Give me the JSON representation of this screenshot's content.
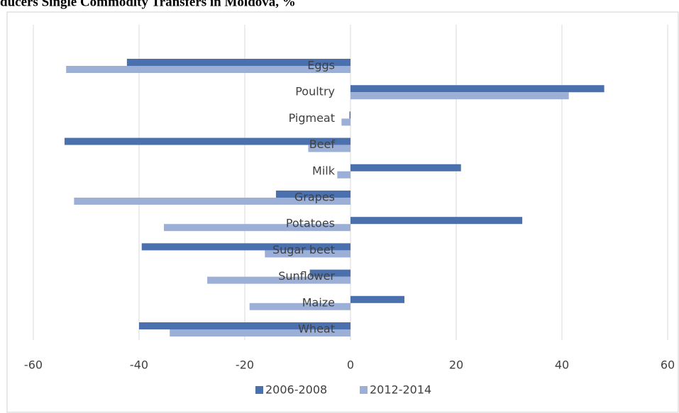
{
  "chart_data": {
    "type": "bar",
    "orientation": "horizontal",
    "title": "ducers Single Commodity Transfers in Moldova, %",
    "categories": [
      "Eggs",
      "Poultry",
      "Pigmeat",
      "Beef",
      "Milk",
      "Grapes",
      "Potatoes",
      "Sugar beet",
      "Sunflower",
      "Maize",
      "Wheat"
    ],
    "series": [
      {
        "name": "2006-2008",
        "color": "#4a70ad",
        "values": [
          -42.3,
          48,
          -0.2,
          -54.1,
          20.9,
          -14.1,
          32.5,
          -39.5,
          -7.7,
          10.2,
          -40
        ]
      },
      {
        "name": "2012-2014",
        "color": "#9cb0d7",
        "values": [
          -53.8,
          41.3,
          -1.7,
          -8,
          -2.5,
          -52.3,
          -35.3,
          -16.2,
          -27.1,
          -19.1,
          -34.2
        ]
      }
    ],
    "xlim": [
      -60,
      60
    ],
    "xticks": [
      -60,
      -40,
      -20,
      0,
      20,
      40,
      60
    ],
    "grid": true,
    "legend": "bottom"
  }
}
